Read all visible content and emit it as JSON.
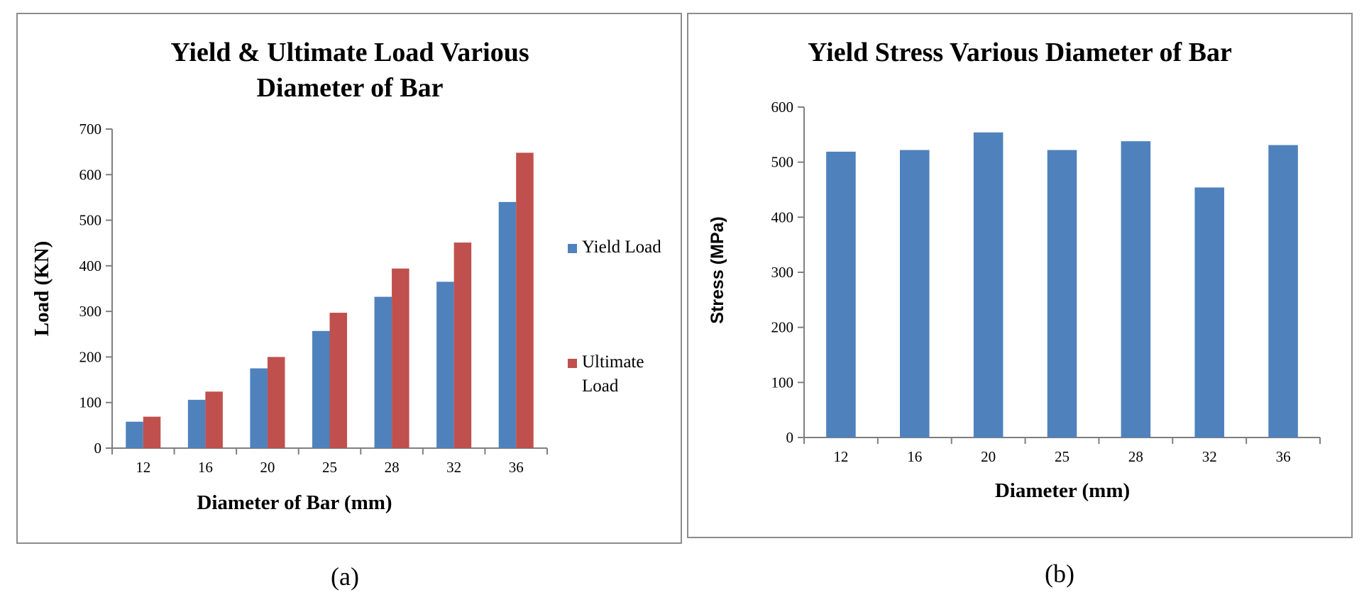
{
  "chart_data": [
    {
      "id": "a",
      "type": "bar",
      "title_lines": [
        "Yield & Ultimate Load Various",
        "Diameter of Bar"
      ],
      "xlabel": "Diameter of Bar (mm)",
      "ylabel": "Load (KN)",
      "categories": [
        "12",
        "16",
        "20",
        "25",
        "28",
        "32",
        "36"
      ],
      "ylim": [
        0,
        700
      ],
      "yticks": [
        "0",
        "100",
        "200",
        "300",
        "400",
        "500",
        "600",
        "700"
      ],
      "series": [
        {
          "name": "Yield Load",
          "color": "#4f81bd",
          "values": [
            58,
            106,
            175,
            257,
            332,
            365,
            540
          ]
        },
        {
          "name": "Ultimate Load",
          "color": "#c0504d",
          "values": [
            69,
            124,
            200,
            297,
            394,
            451,
            648
          ]
        }
      ],
      "legend_position": "right",
      "grid": false
    },
    {
      "id": "b",
      "type": "bar",
      "title": "Yield Stress Various Diameter of Bar",
      "xlabel": "Diameter (mm)",
      "ylabel": "Stress (MPa)",
      "categories": [
        "12",
        "16",
        "20",
        "25",
        "28",
        "32",
        "36"
      ],
      "ylim": [
        0,
        600
      ],
      "yticks": [
        "0",
        "100",
        "200",
        "300",
        "400",
        "500",
        "600"
      ],
      "series": [
        {
          "color": "#4f81bd",
          "values": [
            519,
            522,
            554,
            522,
            538,
            454,
            531
          ]
        }
      ],
      "grid": false
    }
  ],
  "captions": {
    "a": "(a)",
    "b": "(b)"
  }
}
